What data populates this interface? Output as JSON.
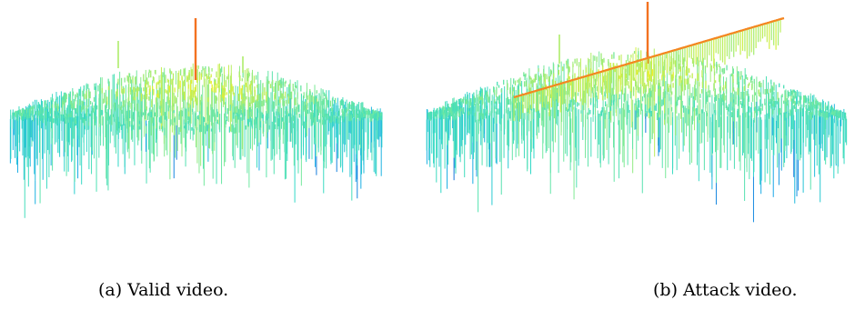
{
  "figures": [
    {
      "caption": "(a) Valid video."
    },
    {
      "caption": "(b) Attack video."
    }
  ],
  "colors": {
    "colormap": [
      "#1030c8",
      "#18a8e8",
      "#30d8c8",
      "#70e8a0",
      "#b8ee60",
      "#f0f020",
      "#f8b020",
      "#f05020"
    ]
  },
  "chart_data": [
    {
      "type": "surface",
      "title": "(a) Valid video.",
      "description_visible": "3D surface plot with jet colormap, dome-shaped noisy surface with a single tall red spike near the center",
      "grid": false
    },
    {
      "type": "surface",
      "title": "(b) Attack video.",
      "description_visible": "3D surface plot with jet colormap, noisy surface with a tall red spike at center and a raised step/ridge running diagonally across the surface",
      "grid": false
    }
  ]
}
